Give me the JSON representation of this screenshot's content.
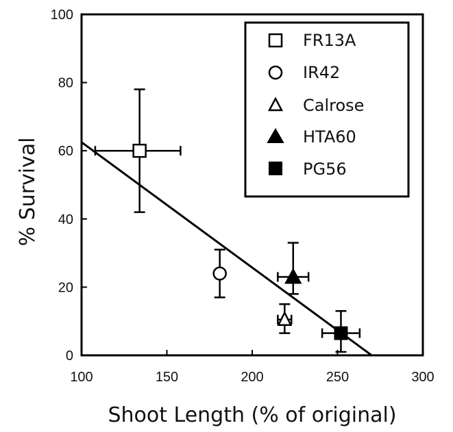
{
  "chart_data": {
    "type": "scatter",
    "title": "",
    "xlabel": "Shoot Length (% of original)",
    "ylabel": "% Survival",
    "xlim": [
      100,
      300
    ],
    "ylim": [
      0,
      100
    ],
    "xticks": [
      100,
      150,
      200,
      250,
      300
    ],
    "yticks": [
      0,
      20,
      40,
      60,
      80,
      100
    ],
    "grid": false,
    "legend_position": "top-right",
    "series": [
      {
        "name": "FR13A",
        "marker": "open-square",
        "x": 134,
        "y": 60,
        "x_err": [
          108,
          158
        ],
        "y_err": [
          42,
          78
        ]
      },
      {
        "name": "IR42",
        "marker": "open-circle",
        "x": 181,
        "y": 24,
        "y_err": [
          17,
          31
        ]
      },
      {
        "name": "Calrose",
        "marker": "open-triangle",
        "x": 219,
        "y": 10.5,
        "x_err": [
          215,
          223
        ],
        "y_err": [
          6.5,
          15
        ]
      },
      {
        "name": "HTA60",
        "marker": "filled-triangle",
        "x": 224,
        "y": 23,
        "x_err": [
          215,
          233
        ],
        "y_err": [
          18,
          33
        ]
      },
      {
        "name": "PG56",
        "marker": "filled-square",
        "x": 252,
        "y": 6.5,
        "x_err": [
          241,
          263
        ],
        "y_err": [
          1,
          13
        ]
      }
    ],
    "fit_line": {
      "x": [
        100,
        270
      ],
      "y": [
        62.5,
        0
      ]
    }
  }
}
